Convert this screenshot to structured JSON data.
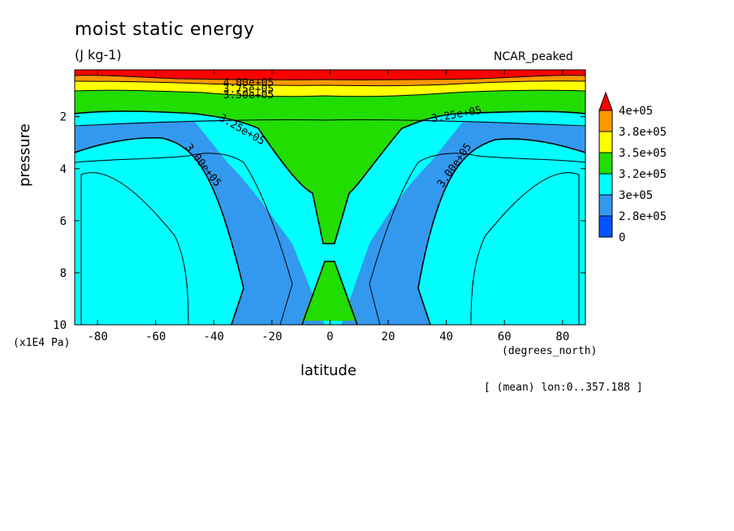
{
  "chart_data": {
    "type": "contour",
    "title": "moist static energy",
    "units": "(J kg-1)",
    "case_label": "NCAR_peaked",
    "xlabel": "latitude",
    "xunit": "(degrees_north)",
    "ylabel": "pressure",
    "yunit": "(x1E4 Pa)",
    "note": "[ (mean) lon:0..357.188 ]",
    "xlim": [
      -87.86,
      87.86
    ],
    "ylim": [
      10,
      0.2
    ],
    "x_ticks": [
      -80,
      -60,
      -40,
      -20,
      0,
      20,
      40,
      60,
      80
    ],
    "y_ticks": [
      2,
      4,
      6,
      8,
      10
    ],
    "contour_labels": [
      {
        "text": "4.00e+05"
      },
      {
        "text": "3.75e+05"
      },
      {
        "text": "3.50e+05"
      },
      {
        "text": "3.25e+05"
      },
      {
        "text": "3.25e+05"
      },
      {
        "text": "3.00e+05"
      },
      {
        "text": "3.00e+05"
      }
    ],
    "colorbar": {
      "labels": [
        "4e+05",
        "3.8e+05",
        "3.5e+05",
        "3.2e+05",
        "3e+05",
        "2.8e+05",
        "0"
      ],
      "colors": [
        "#ff0000",
        "#ff9900",
        "#ffff00",
        "#22dd00",
        "#00ffff",
        "#3399ee",
        "#0055ff"
      ]
    },
    "colors": {
      "red": "#ff0000",
      "orange": "#ff9900",
      "yellow": "#ffff00",
      "green": "#22dd00",
      "cyan": "#00ffff",
      "lightblue": "#3399ee",
      "blue": "#0055ff"
    }
  }
}
